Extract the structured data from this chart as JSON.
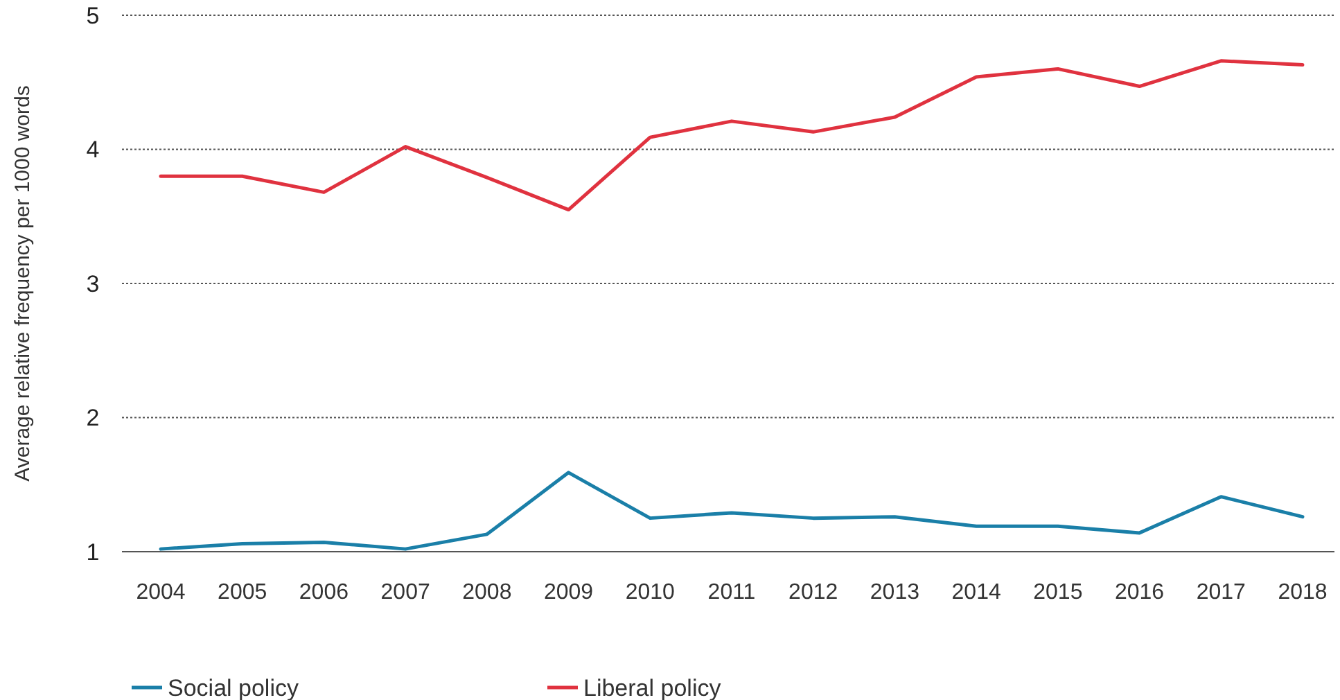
{
  "chart_data": {
    "type": "line",
    "ylabel": "Average relative frequency per 1000 words",
    "categories": [
      "2004",
      "2005",
      "2006",
      "2007",
      "2008",
      "2009",
      "2010",
      "2011",
      "2012",
      "2013",
      "2014",
      "2015",
      "2016",
      "2017",
      "2018"
    ],
    "series": [
      {
        "name": "Social policy",
        "color": "#1a7fa8",
        "values": [
          1.02,
          1.06,
          1.07,
          1.02,
          1.13,
          1.59,
          1.25,
          1.29,
          1.25,
          1.26,
          1.19,
          1.19,
          1.14,
          1.41,
          1.26
        ]
      },
      {
        "name": "Liberal policy",
        "color": "#e0323f",
        "values": [
          3.8,
          3.8,
          3.68,
          4.02,
          3.79,
          3.55,
          4.09,
          4.21,
          4.13,
          4.24,
          4.54,
          4.6,
          4.47,
          4.66,
          4.63
        ]
      }
    ],
    "ylim": [
      1,
      5
    ],
    "yticks": [
      1,
      2,
      3,
      4,
      5
    ],
    "grid": "y",
    "legend": "bottom left",
    "marker": "none",
    "line_style": "solid"
  }
}
